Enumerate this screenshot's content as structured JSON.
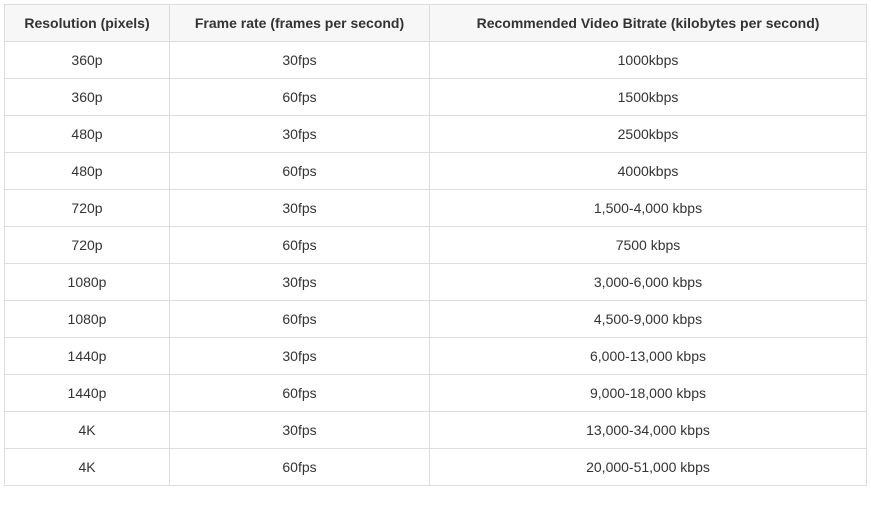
{
  "bitrate_table": {
    "type": "table",
    "background_color": "#ffffff",
    "border_color": "#dddddd",
    "header_bg": "#f7f7f7",
    "text_color": "#333333",
    "font_size": 14,
    "columns": [
      {
        "label": "Resolution (pixels)",
        "align": "center"
      },
      {
        "label": "Frame rate (frames per second)",
        "align": "center"
      },
      {
        "label": "Recommended Video Bitrate (kilobytes per second)",
        "align": "center"
      }
    ],
    "rows": [
      {
        "resolution": "360p",
        "framerate": "30fps",
        "bitrate": "1000kbps"
      },
      {
        "resolution": "360p",
        "framerate": "60fps",
        "bitrate": "1500kbps"
      },
      {
        "resolution": "480p",
        "framerate": "30fps",
        "bitrate": "2500kbps"
      },
      {
        "resolution": "480p",
        "framerate": "60fps",
        "bitrate": "4000kbps"
      },
      {
        "resolution": "720p",
        "framerate": "30fps",
        "bitrate": "1,500-4,000 kbps"
      },
      {
        "resolution": "720p",
        "framerate": "60fps",
        "bitrate": "7500 kbps"
      },
      {
        "resolution": "1080p",
        "framerate": "30fps",
        "bitrate": "3,000-6,000 kbps"
      },
      {
        "resolution": "1080p",
        "framerate": "60fps",
        "bitrate": "4,500-9,000 kbps"
      },
      {
        "resolution": "1440p",
        "framerate": "30fps",
        "bitrate": "6,000-13,000 kbps"
      },
      {
        "resolution": "1440p",
        "framerate": "60fps",
        "bitrate": "9,000-18,000 kbps"
      },
      {
        "resolution": "4K",
        "framerate": "30fps",
        "bitrate": "13,000-34,000 kbps"
      },
      {
        "resolution": "4K",
        "framerate": "60fps",
        "bitrate": "20,000-51,000 kbps"
      }
    ]
  }
}
